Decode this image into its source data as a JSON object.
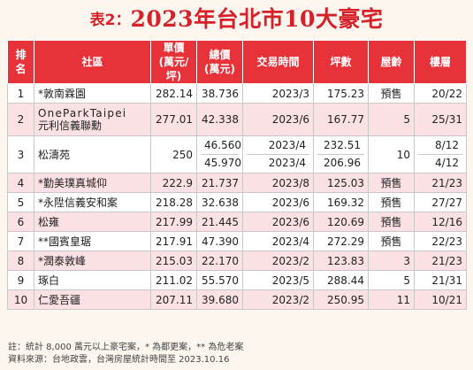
{
  "title": {
    "prefix": "表2：",
    "text": "2023年台北市10大豪宅"
  },
  "headers": [
    {
      "line1": "排",
      "line2": "名"
    },
    {
      "line1": "社區",
      "line2": ""
    },
    {
      "line1": "單價",
      "line2": "(萬元/坪)"
    },
    {
      "line1": "總價",
      "line2": "(萬元)"
    },
    {
      "line1": "交易時間",
      "line2": ""
    },
    {
      "line1": "坪數",
      "line2": ""
    },
    {
      "line1": "屋齡",
      "line2": ""
    },
    {
      "line1": "樓層",
      "line2": ""
    }
  ],
  "rows": [
    {
      "rank": "1",
      "name": "*敦南霖園",
      "unit": "282.14",
      "total": "38.736",
      "time": "2023/3",
      "area": "175.23",
      "age": "預售",
      "floor": "20/22"
    },
    {
      "rank": "2",
      "name": "OneParkTaipei",
      "name2": "元利信義聯勳",
      "unit": "277.01",
      "total": "42.338",
      "time": "2023/6",
      "area": "167.77",
      "age": "5",
      "floor": "25/31"
    },
    {
      "rank": "3",
      "name": "松濤苑",
      "unit": "250",
      "total": "46.560",
      "total2": "45.970",
      "time": "2023/4",
      "time2": "2023/4",
      "area": "232.51",
      "area2": "206.96",
      "age": "10",
      "floor": "8/12",
      "floor2": "4/12"
    },
    {
      "rank": "4",
      "name": "*勤美璞真城仰",
      "unit": "222.9",
      "total": "21.737",
      "time": "2023/8",
      "area": "125.03",
      "age": "預售",
      "floor": "21/23"
    },
    {
      "rank": "5",
      "name": "*永陞信義安和案",
      "unit": "218.28",
      "total": "32.638",
      "time": "2023/6",
      "area": "169.32",
      "age": "預售",
      "floor": "27/27"
    },
    {
      "rank": "6",
      "name": "松雍",
      "unit": "217.99",
      "total": "21.445",
      "time": "2023/6",
      "area": "120.69",
      "age": "預售",
      "floor": "12/16"
    },
    {
      "rank": "7",
      "name": "**國賓皇琚",
      "unit": "217.91",
      "total": "47.390",
      "time": "2023/4",
      "area": "272.29",
      "age": "預售",
      "floor": "22/23"
    },
    {
      "rank": "8",
      "name": "*潤泰敦峰",
      "unit": "215.03",
      "total": "22.170",
      "time": "2023/2",
      "area": "123.83",
      "age": "3",
      "floor": "21/23"
    },
    {
      "rank": "9",
      "name": "琢白",
      "unit": "211.02",
      "total": "55.570",
      "time": "2023/5",
      "area": "288.44",
      "age": "5",
      "floor": "21/31"
    },
    {
      "rank": "10",
      "name": "仁愛吾疆",
      "unit": "207.11",
      "total": "39.680",
      "time": "2023/2",
      "area": "250.95",
      "age": "11",
      "floor": "10/21"
    }
  ],
  "notes": [
    "註：統計 8,000 萬元以上豪宅案，* 為都更案，** 為危老案",
    "資料來源：台地政雲，台灣房屋統計時間至 2023.10.16"
  ]
}
